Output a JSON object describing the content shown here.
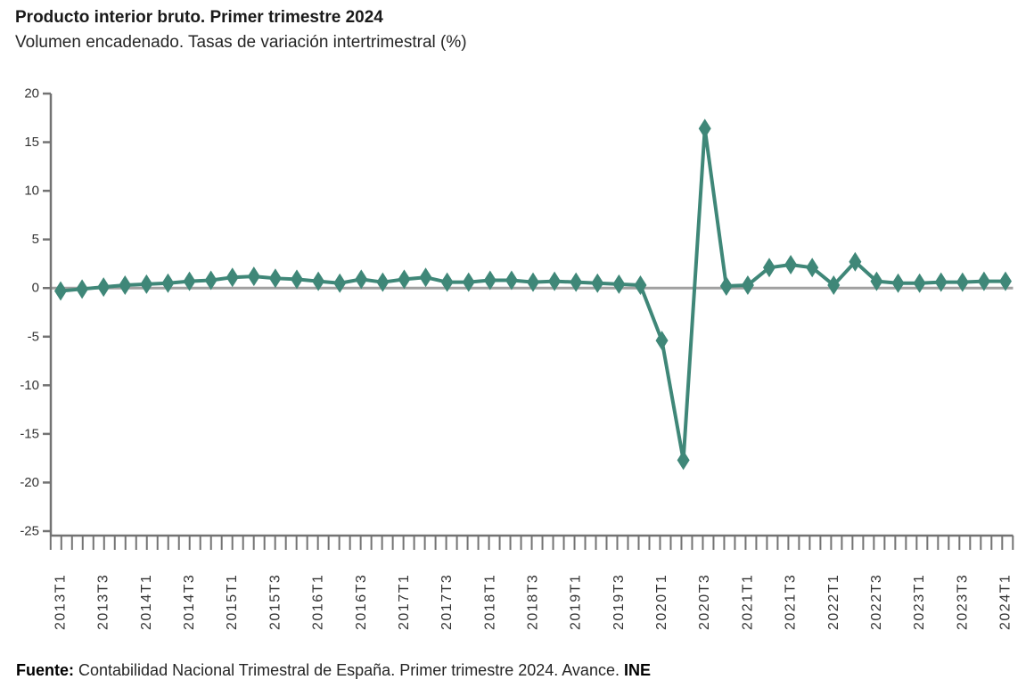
{
  "header": {
    "title": "Producto interior bruto. Primer trimestre 2024",
    "subtitle": "Volumen encadenado. Tasas de variación intertrimestral (%)"
  },
  "footer": {
    "source_label": "Fuente:",
    "source_text": " Contabilidad Nacional Trimestral de España. Primer trimestre 2024. Avance. ",
    "source_org": "INE"
  },
  "chart_data": {
    "type": "line",
    "title": "Producto interior bruto. Primer trimestre 2024",
    "subtitle": "Volumen encadenado. Tasas de variación intertrimestral (%)",
    "xlabel": "",
    "ylabel": "",
    "ylim": [
      -25,
      20
    ],
    "yticks": [
      20,
      15,
      10,
      5,
      0,
      -5,
      -10,
      -15,
      -20,
      -25
    ],
    "x_label_interval": 2,
    "grid": "zero-line-only",
    "legend_position": "none",
    "marker": "diamond",
    "line_color": "#3F8778",
    "zero_line_color": "#A0A0A0",
    "axis_color": "#737373",
    "text_color": "#333333",
    "categories": [
      "2013T1",
      "2013T2",
      "2013T3",
      "2013T4",
      "2014T1",
      "2014T2",
      "2014T3",
      "2014T4",
      "2015T1",
      "2015T2",
      "2015T3",
      "2015T4",
      "2016T1",
      "2016T2",
      "2016T3",
      "2016T4",
      "2017T1",
      "2017T2",
      "2017T3",
      "2017T4",
      "2018T1",
      "2018T2",
      "2018T3",
      "2018T4",
      "2019T1",
      "2019T2",
      "2019T3",
      "2019T4",
      "2020T1",
      "2020T2",
      "2020T3",
      "2020T4",
      "2021T1",
      "2021T2",
      "2021T3",
      "2021T4",
      "2022T1",
      "2022T2",
      "2022T3",
      "2022T4",
      "2023T1",
      "2023T2",
      "2023T3",
      "2023T4",
      "2024T1"
    ],
    "values": [
      -0.3,
      -0.1,
      0.1,
      0.3,
      0.4,
      0.5,
      0.7,
      0.8,
      1.1,
      1.2,
      1.0,
      0.9,
      0.7,
      0.5,
      0.9,
      0.6,
      0.9,
      1.1,
      0.6,
      0.6,
      0.8,
      0.8,
      0.6,
      0.7,
      0.6,
      0.5,
      0.4,
      0.3,
      -5.4,
      -17.7,
      16.4,
      0.2,
      0.3,
      2.1,
      2.4,
      2.1,
      0.3,
      2.7,
      0.7,
      0.5,
      0.5,
      0.6,
      0.6,
      0.7,
      0.7
    ]
  }
}
